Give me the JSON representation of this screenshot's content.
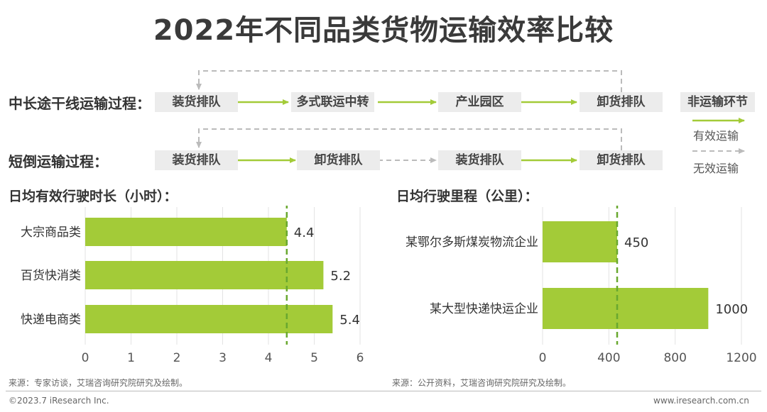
{
  "title": "2022年不同品类货物运输效率比较",
  "process": {
    "long_label": "中长途干线运输过程：",
    "long_steps": [
      "装货排队",
      "多式联运中转",
      "产业园区",
      "卸货排队"
    ],
    "short_label": "短倒运输过程：",
    "short_steps": [
      "装货排队",
      "卸货排队",
      "装货排队",
      "卸货排队"
    ],
    "legend": {
      "box": "非运输环节",
      "effective": "有效运输",
      "ineffective": "无效运输"
    }
  },
  "colors": {
    "accent": "#a3cb38",
    "dash": "#69a82f",
    "box": "#ececec",
    "ineffective": "#bbbbbb"
  },
  "left_chart": {
    "title": "日均有效行驶时长（小时）：",
    "source": "来源：专家访谈，艾瑞咨询研究院研究及绘制。"
  },
  "right_chart": {
    "title": "日均行驶里程（公里）：",
    "source": "来源：公开资料，艾瑞咨询研究院研究及绘制。"
  },
  "chart_data": [
    {
      "type": "bar",
      "orientation": "horizontal",
      "title": "日均有效行驶时长（小时）：",
      "categories": [
        "大宗商品类",
        "百货快消类",
        "快递电商类"
      ],
      "values": [
        4.4,
        5.2,
        5.4
      ],
      "data_labels": [
        "4.4",
        "5.2",
        "5.4"
      ],
      "xlim": [
        0,
        6
      ],
      "xticks": [
        "0",
        "1",
        "2",
        "3",
        "4",
        "5",
        "6"
      ],
      "reference_line": 4.4,
      "grid": true
    },
    {
      "type": "bar",
      "orientation": "horizontal",
      "title": "日均行驶里程（公里）：",
      "categories": [
        "某鄂尔多斯煤炭物流企业",
        "某大型快递快运企业"
      ],
      "values": [
        450,
        1000
      ],
      "data_labels": [
        "450",
        "1000"
      ],
      "xlim": [
        0,
        1200
      ],
      "xticks": [
        "0",
        "400",
        "800",
        "1200"
      ],
      "reference_line": 450,
      "grid": true
    }
  ],
  "footer": {
    "copyright": "©2023.7 iResearch Inc.",
    "website": "www.iresearch.com.cn"
  }
}
